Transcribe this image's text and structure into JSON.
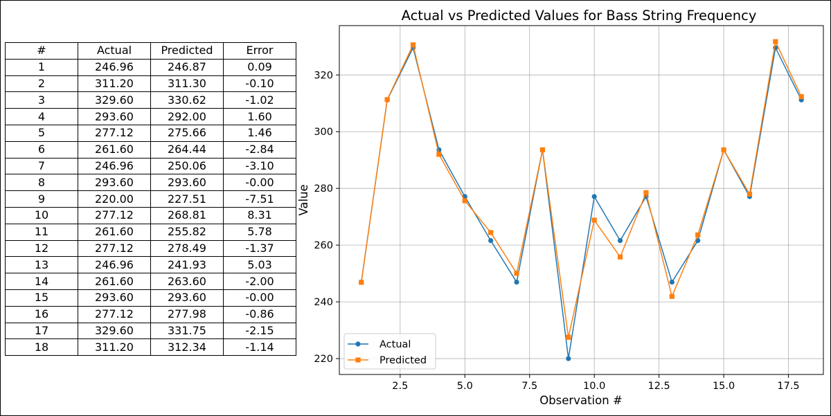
{
  "table": {
    "headers": [
      "#",
      "Actual",
      "Predicted",
      "Error"
    ],
    "rows": [
      [
        "1",
        "246.96",
        "246.87",
        "0.09"
      ],
      [
        "2",
        "311.20",
        "311.30",
        "-0.10"
      ],
      [
        "3",
        "329.60",
        "330.62",
        "-1.02"
      ],
      [
        "4",
        "293.60",
        "292.00",
        "1.60"
      ],
      [
        "5",
        "277.12",
        "275.66",
        "1.46"
      ],
      [
        "6",
        "261.60",
        "264.44",
        "-2.84"
      ],
      [
        "7",
        "246.96",
        "250.06",
        "-3.10"
      ],
      [
        "8",
        "293.60",
        "293.60",
        "-0.00"
      ],
      [
        "9",
        "220.00",
        "227.51",
        "-7.51"
      ],
      [
        "10",
        "277.12",
        "268.81",
        "8.31"
      ],
      [
        "11",
        "261.60",
        "255.82",
        "5.78"
      ],
      [
        "12",
        "277.12",
        "278.49",
        "-1.37"
      ],
      [
        "13",
        "246.96",
        "241.93",
        "5.03"
      ],
      [
        "14",
        "261.60",
        "263.60",
        "-2.00"
      ],
      [
        "15",
        "293.60",
        "293.60",
        "-0.00"
      ],
      [
        "16",
        "277.12",
        "277.98",
        "-0.86"
      ],
      [
        "17",
        "329.60",
        "331.75",
        "-2.15"
      ],
      [
        "18",
        "311.20",
        "312.34",
        "-1.14"
      ]
    ]
  },
  "chart_data": {
    "type": "line",
    "title": "Actual vs Predicted Values for Bass String Frequency",
    "xlabel": "Observation #",
    "ylabel": "Value",
    "x": [
      1,
      2,
      3,
      4,
      5,
      6,
      7,
      8,
      9,
      10,
      11,
      12,
      13,
      14,
      15,
      16,
      17,
      18
    ],
    "series": [
      {
        "name": "Actual",
        "color": "#1f77b4",
        "marker": "circle",
        "values": [
          246.96,
          311.2,
          329.6,
          293.6,
          277.12,
          261.6,
          246.96,
          293.6,
          220.0,
          277.12,
          261.6,
          277.12,
          246.96,
          261.6,
          293.6,
          277.12,
          329.6,
          311.2
        ]
      },
      {
        "name": "Predicted",
        "color": "#ff7f0e",
        "marker": "square",
        "values": [
          246.87,
          311.3,
          330.62,
          292.0,
          275.66,
          264.44,
          250.06,
          293.6,
          227.51,
          268.81,
          255.82,
          278.49,
          241.93,
          263.6,
          293.6,
          277.98,
          331.75,
          312.34
        ]
      }
    ],
    "xlim": [
      0.15,
      18.85
    ],
    "ylim": [
      214.4,
      337.4
    ],
    "xticks": [
      "2.5",
      "5.0",
      "7.5",
      "10.0",
      "12.5",
      "15.0",
      "17.5"
    ],
    "yticks": [
      "220",
      "240",
      "260",
      "280",
      "300",
      "320"
    ],
    "grid": true,
    "legend": "lower-left"
  }
}
